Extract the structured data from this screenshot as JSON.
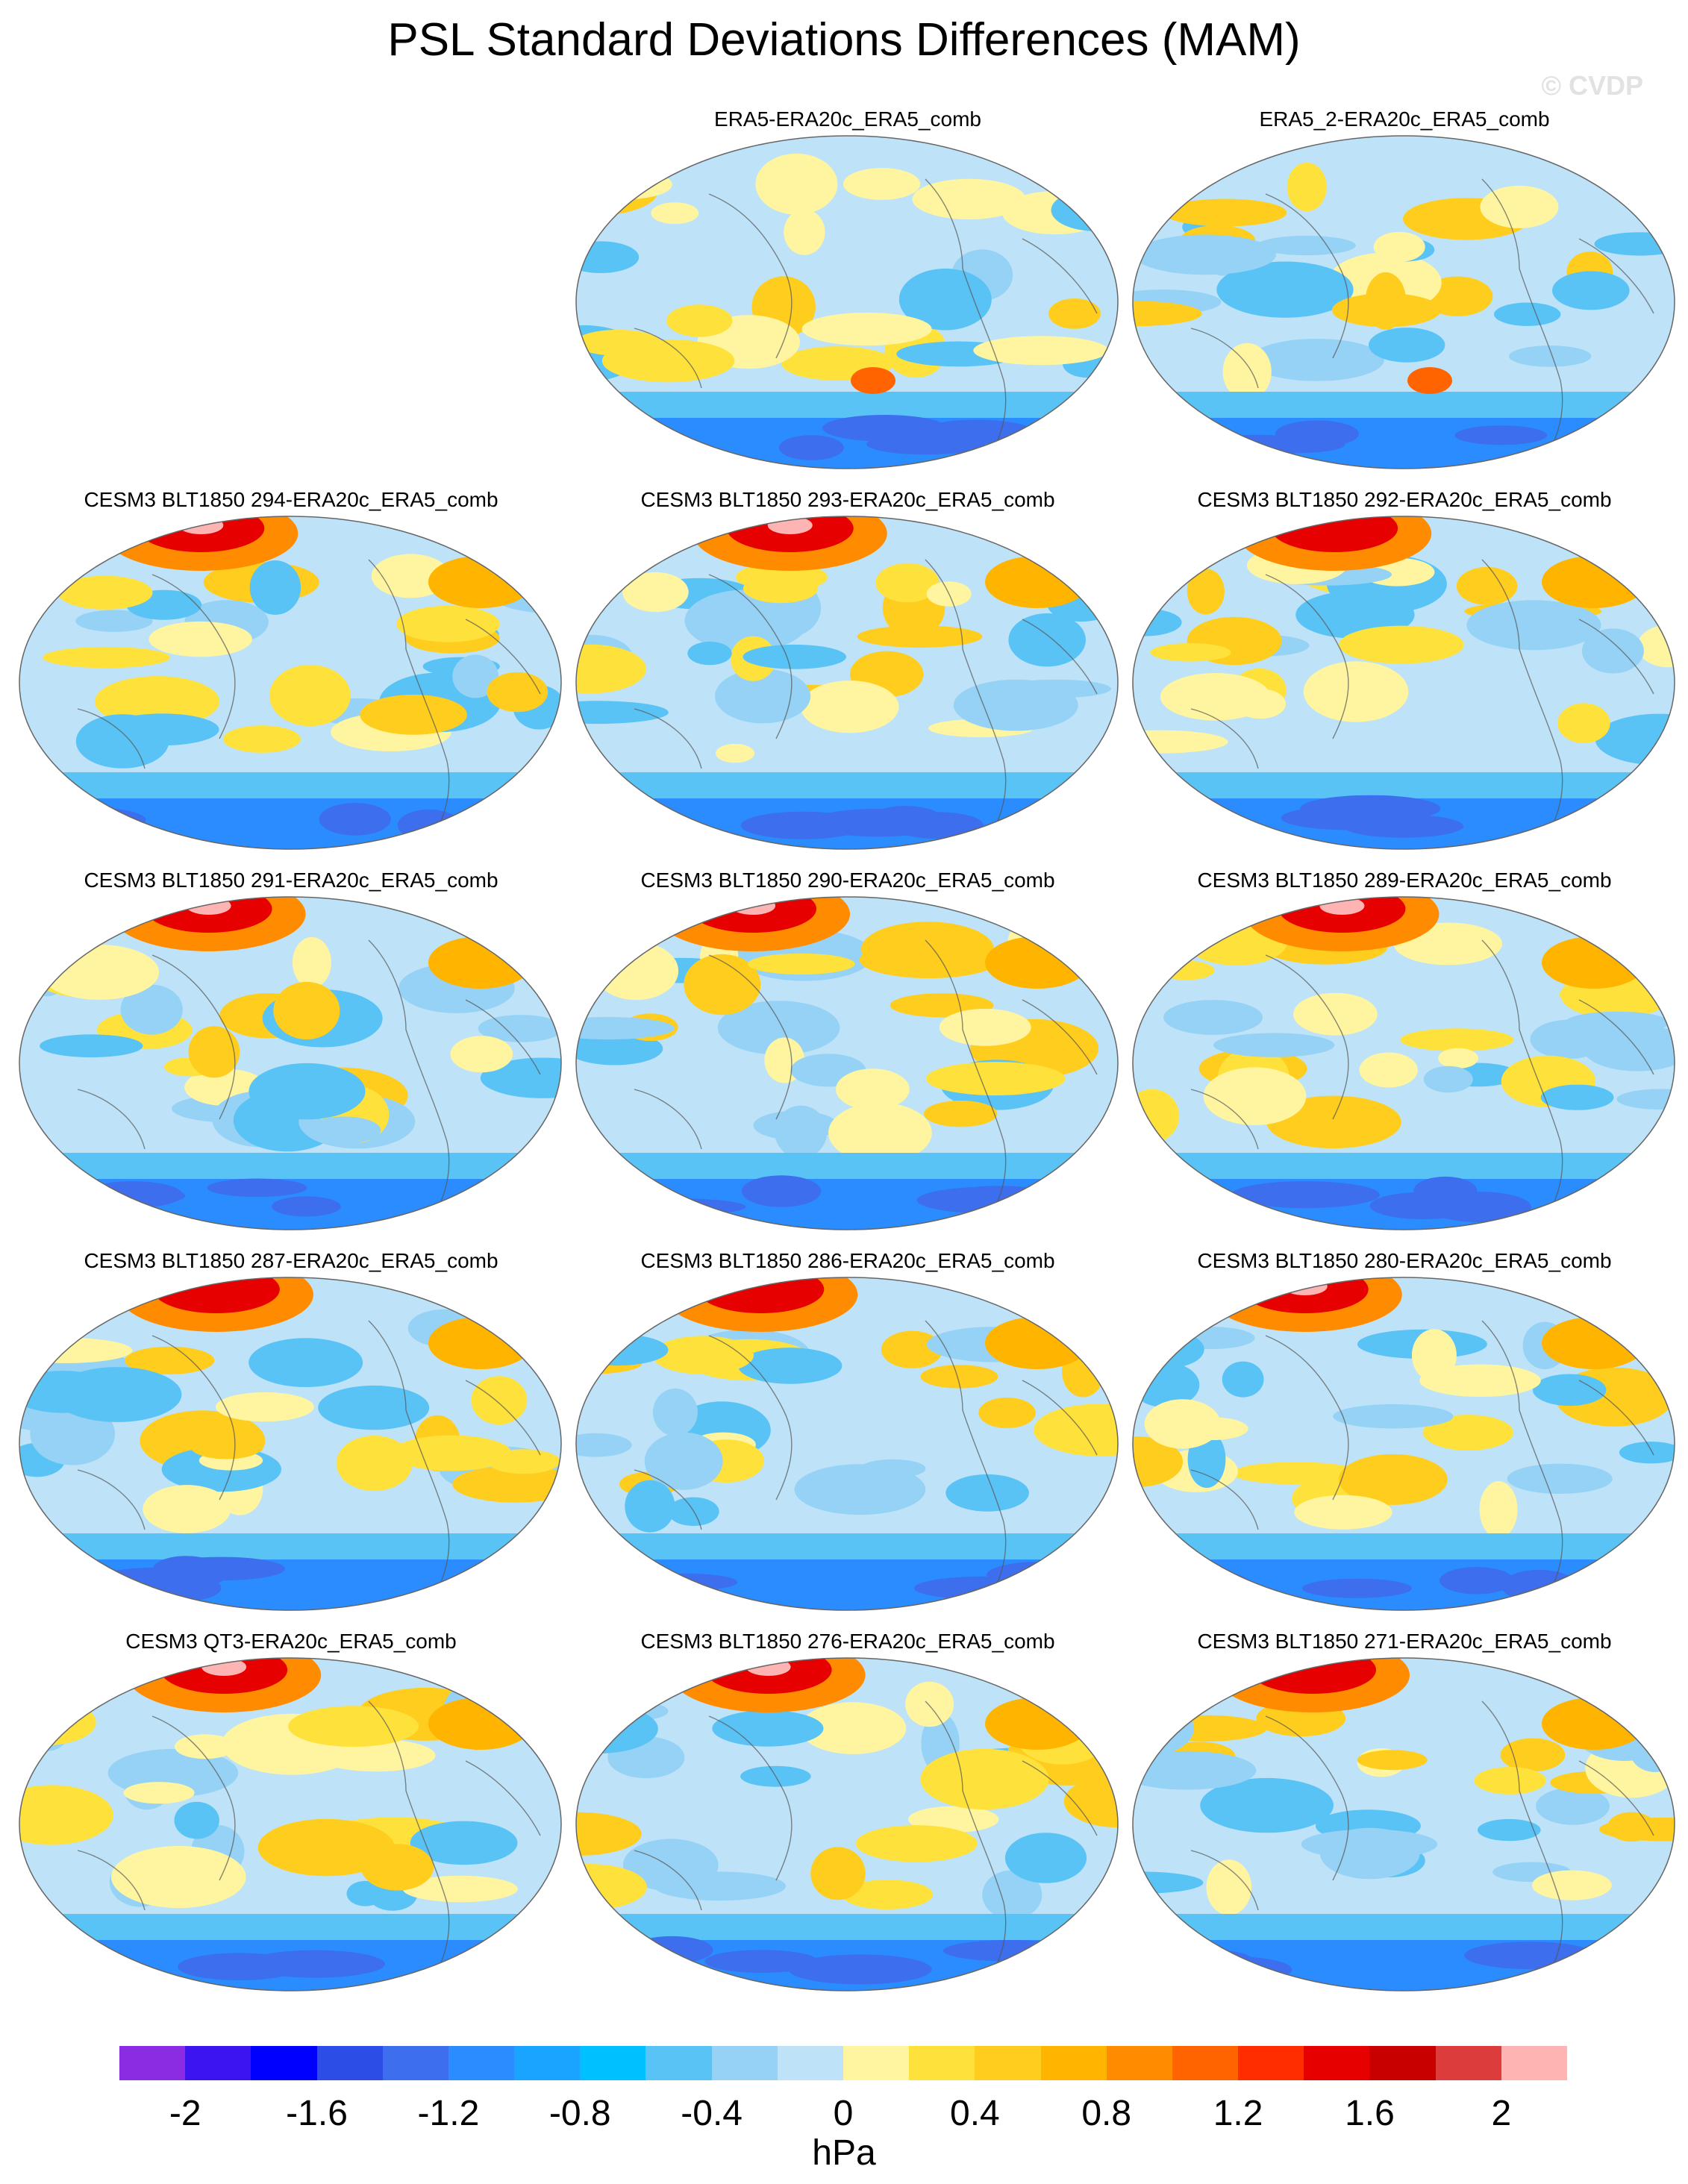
{
  "title": "PSL Standard Deviations Differences (MAM)",
  "watermark": "© CVDP",
  "colorbar": {
    "units": "hPa",
    "tick_labels": [
      "-2",
      "-1.6",
      "-1.2",
      "-0.8",
      "-0.4",
      "0",
      "0.4",
      "0.8",
      "1.2",
      "1.6",
      "2"
    ],
    "colors": [
      "#8b2be2",
      "#3c14f0",
      "#0000ff",
      "#2d4ee6",
      "#3c6eee",
      "#2a8cff",
      "#19a5ff",
      "#00c0ff",
      "#5ac3f5",
      "#96d2f5",
      "#bee3f8",
      "#fff5a0",
      "#ffe13c",
      "#ffcd1e",
      "#ffb400",
      "#ff8c00",
      "#ff6400",
      "#ff2d00",
      "#e60000",
      "#c80000",
      "#dc3c3c",
      "#ffb4b4"
    ]
  },
  "panels": [
    {
      "title": "ERA5-ERA20c_ERA5_comb"
    },
    {
      "title": "ERA5_2-ERA20c_ERA5_comb"
    },
    {
      "title": "CESM3 BLT1850 294-ERA20c_ERA5_comb"
    },
    {
      "title": "CESM3 BLT1850 293-ERA20c_ERA5_comb"
    },
    {
      "title": "CESM3 BLT1850 292-ERA20c_ERA5_comb"
    },
    {
      "title": "CESM3 BLT1850 291-ERA20c_ERA5_comb"
    },
    {
      "title": "CESM3 BLT1850 290-ERA20c_ERA5_comb"
    },
    {
      "title": "CESM3 BLT1850 289-ERA20c_ERA5_comb"
    },
    {
      "title": "CESM3 BLT1850 287-ERA20c_ERA5_comb"
    },
    {
      "title": "CESM3 BLT1850 286-ERA20c_ERA5_comb"
    },
    {
      "title": "CESM3 BLT1850 280-ERA20c_ERA5_comb"
    },
    {
      "title": "CESM3 QT3-ERA20c_ERA5_comb"
    },
    {
      "title": "CESM3 BLT1850 276-ERA20c_ERA5_comb"
    },
    {
      "title": "CESM3 BLT1850 271-ERA20c_ERA5_comb"
    }
  ]
}
